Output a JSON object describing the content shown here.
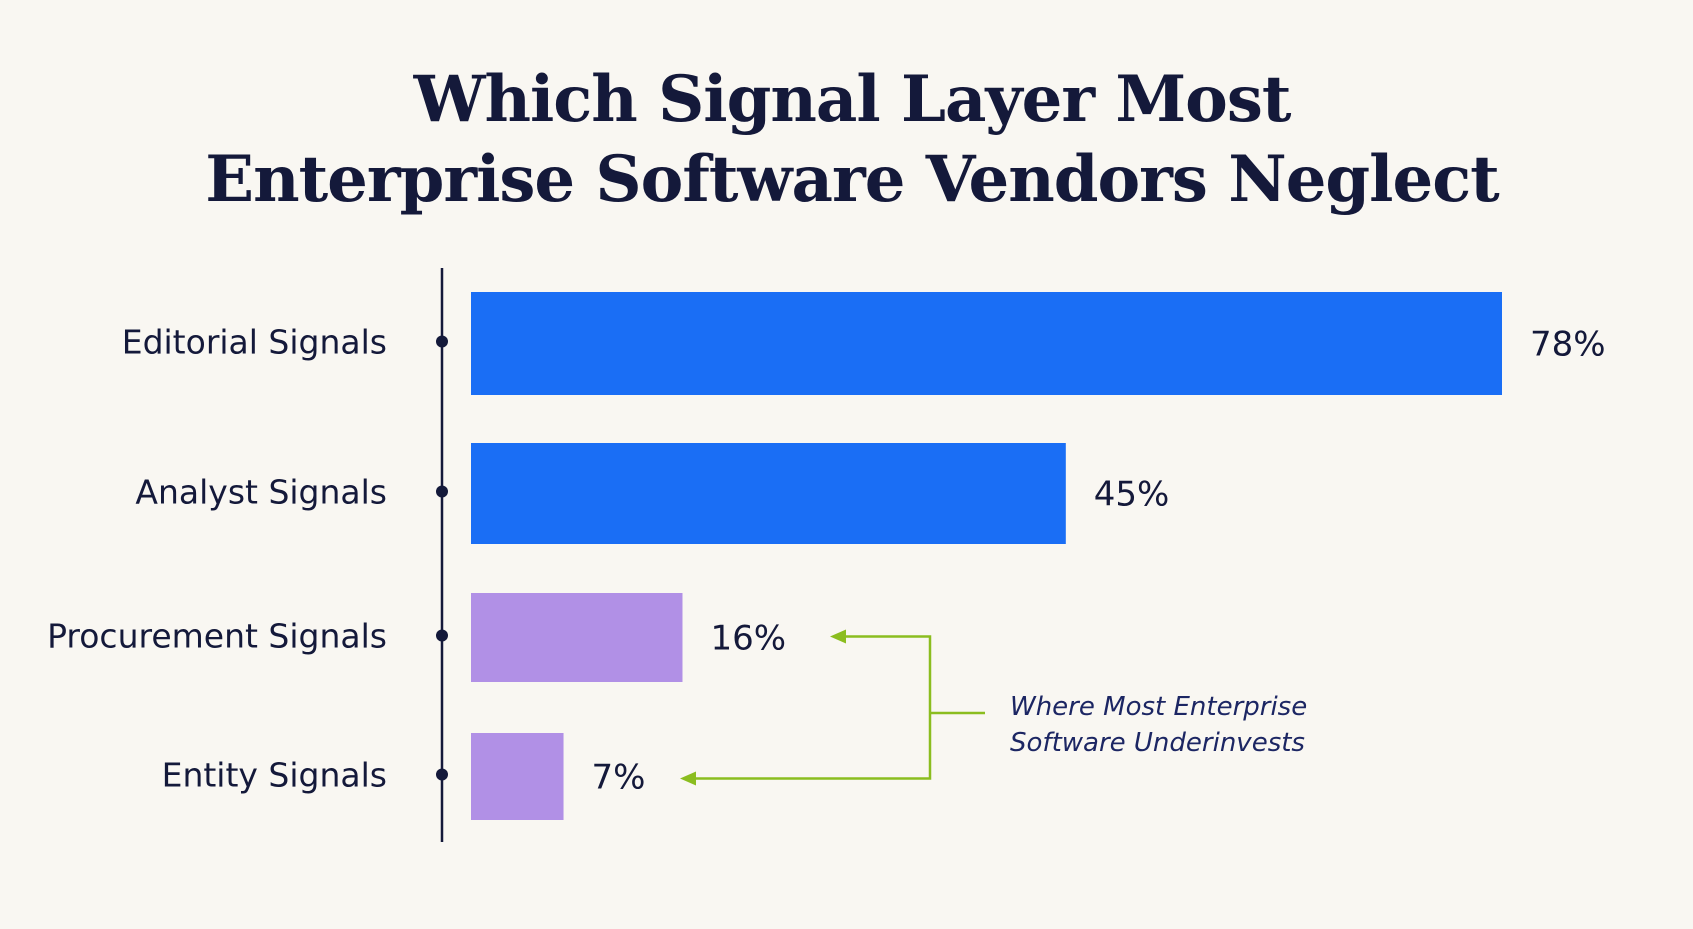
{
  "chart_data": {
    "type": "bar",
    "orientation": "horizontal",
    "title_lines": [
      "Which Signal Layer Most",
      "Enterprise Software Vendors Neglect"
    ],
    "categories": [
      "Editorial Signals",
      "Analyst Signals",
      "Procurement Signals",
      "Entity Signals"
    ],
    "values": [
      78,
      45,
      16,
      7
    ],
    "value_labels": [
      "78%",
      "45%",
      "16%",
      "7%"
    ],
    "bar_colors": [
      "#1a6ef5",
      "#1a6ef5",
      "#b190e6",
      "#b190e6"
    ],
    "xlim": [
      0,
      78
    ],
    "grid": false,
    "annotation": {
      "lines": [
        "Where Most Enterprise",
        "Software Underinvests"
      ],
      "targets": [
        "Procurement Signals",
        "Entity Signals"
      ],
      "color": "#8bbd1f"
    }
  }
}
